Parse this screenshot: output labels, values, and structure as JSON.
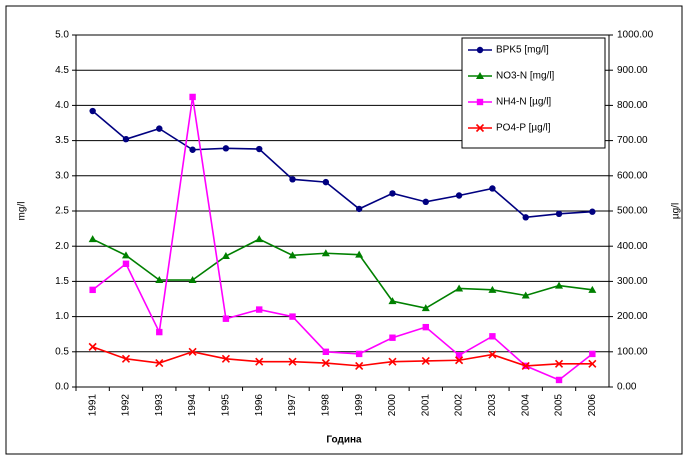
{
  "chart_data": {
    "type": "line",
    "xlabel": "Година",
    "ylabel": "mg/l",
    "y2label": "µg/l",
    "categories": [
      "1991",
      "1992",
      "1993",
      "1994",
      "1995",
      "1996",
      "1997",
      "1998",
      "1999",
      "2000",
      "2001",
      "2002",
      "2003",
      "2004",
      "2005",
      "2006"
    ],
    "series": [
      {
        "name": "BPK5 [mg/l]",
        "color": "#000080",
        "marker": "circle",
        "values": [
          3.92,
          3.52,
          3.67,
          3.37,
          3.39,
          3.38,
          2.95,
          2.91,
          2.53,
          2.75,
          2.63,
          2.72,
          2.82,
          2.41,
          2.46,
          2.49
        ]
      },
      {
        "name": "NO3-N [mg/l]",
        "color": "#008000",
        "marker": "triangle",
        "values": [
          2.1,
          1.87,
          1.52,
          1.52,
          1.86,
          2.1,
          1.87,
          1.9,
          1.88,
          1.22,
          1.12,
          1.4,
          1.38,
          1.3,
          1.44,
          1.38
        ]
      },
      {
        "name": "NH4-N [µg/l]",
        "color": "#ff00ff",
        "marker": "square",
        "axis": "y2",
        "values": [
          276,
          350,
          156,
          824,
          194,
          220,
          200,
          100,
          94,
          140,
          170,
          90,
          144,
          60,
          20,
          94
        ]
      },
      {
        "name": "PO4-P [µg/l]",
        "color": "#ff0000",
        "marker": "x",
        "axis": "y2",
        "values": [
          114,
          80,
          68,
          100,
          80,
          72,
          72,
          68,
          60,
          72,
          74,
          76,
          92,
          60,
          66,
          66
        ]
      }
    ],
    "ylim": [
      0,
      5
    ],
    "yticks": [
      {
        "value": 0,
        "label": "0.0"
      },
      0.5,
      {
        "value": 1,
        "label": "1.0"
      },
      1.5,
      {
        "value": 2,
        "label": "2.0"
      },
      2.5,
      {
        "value": 3,
        "label": "3.0"
      },
      3.5,
      {
        "value": 4,
        "label": "4.0"
      },
      4.5,
      {
        "value": 5,
        "label": "5.0"
      }
    ],
    "y2lim": [
      0,
      1000
    ],
    "y2ticks": [
      {
        "value": 0,
        "label": "0.00"
      },
      {
        "value": 100,
        "label": "100.00"
      },
      {
        "value": 200,
        "label": "200.00"
      },
      {
        "value": 300,
        "label": "300.00"
      },
      {
        "value": 400,
        "label": "400.00"
      },
      {
        "value": 500,
        "label": "500.00"
      },
      {
        "value": 600,
        "label": "600.00"
      },
      {
        "value": 700,
        "label": "700.00"
      },
      {
        "value": 800,
        "label": "800.00"
      },
      {
        "value": 900,
        "label": "900.00"
      },
      {
        "value": 1000,
        "label": "1000.00"
      }
    ],
    "grid": true,
    "legend": "upper right"
  }
}
